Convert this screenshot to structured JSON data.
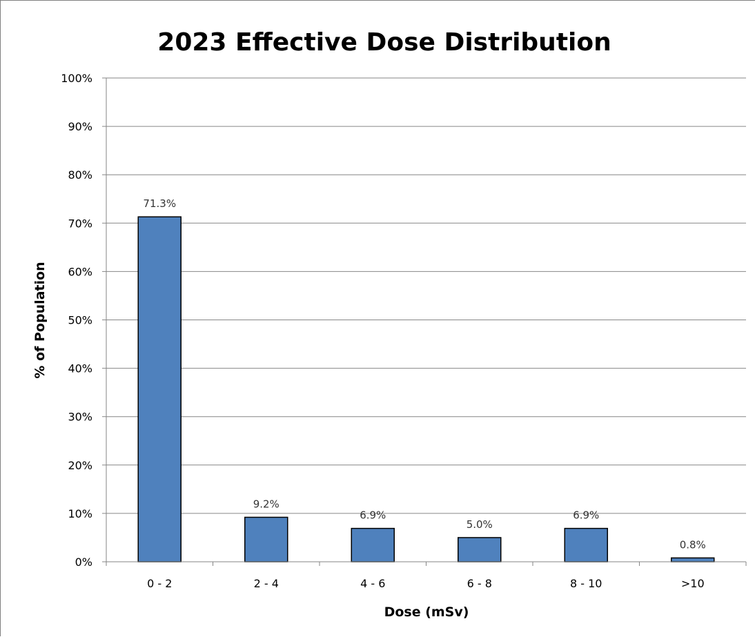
{
  "chart_data": {
    "type": "bar",
    "title": "2023 Effective Dose Distribution",
    "xlabel": "Dose (mSv)",
    "ylabel": "% of Population",
    "categories": [
      "0 - 2",
      "2 - 4",
      "4 - 6",
      "6 - 8",
      "8 - 10",
      ">10"
    ],
    "values": [
      71.3,
      9.2,
      6.9,
      5.0,
      6.9,
      0.8
    ],
    "data_labels": [
      "71.3%",
      "9.2%",
      "6.9%",
      "5.0%",
      "6.9%",
      "0.8%"
    ],
    "ylim": [
      0,
      100
    ],
    "y_ticks": [
      0,
      10,
      20,
      30,
      40,
      50,
      60,
      70,
      80,
      90,
      100
    ],
    "y_tick_labels": [
      "0%",
      "10%",
      "20%",
      "30%",
      "40%",
      "50%",
      "60%",
      "70%",
      "80%",
      "90%",
      "100%"
    ],
    "grid": true,
    "legend": "none",
    "bar_color": "#4f81bd"
  }
}
